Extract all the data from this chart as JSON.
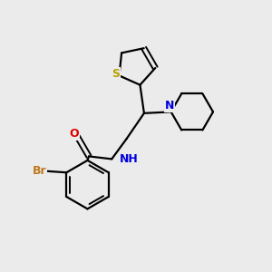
{
  "background_color": "#ebebeb",
  "bond_color": "#000000",
  "S_color": "#b8a000",
  "N_color": "#0000dd",
  "O_color": "#dd0000",
  "Br_color": "#c07820",
  "figsize": [
    3.0,
    3.0
  ],
  "dpi": 100,
  "xlim": [
    0,
    10
  ],
  "ylim": [
    0,
    10
  ]
}
